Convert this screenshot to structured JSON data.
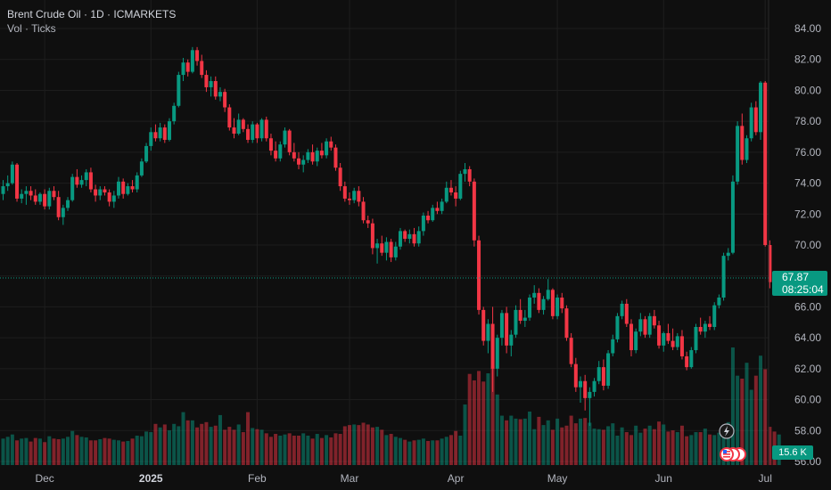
{
  "header": {
    "title": "Brent Crude Oil · 1D · ICMARKETS",
    "subtitle": "Vol · Ticks"
  },
  "price_axis": {
    "ticks": [
      "84.00",
      "82.00",
      "80.00",
      "78.00",
      "76.00",
      "74.00",
      "72.00",
      "70.00",
      "66.00",
      "64.00",
      "62.00",
      "60.00",
      "58.00",
      "56.00"
    ]
  },
  "last_price": {
    "value": "67.87",
    "countdown": "08:25:04"
  },
  "volume_tag": "15.6 K",
  "colors": {
    "up": "#089981",
    "down": "#f23645",
    "background": "#0f0f0f",
    "grid": "#1e1e1e"
  },
  "chart_data": {
    "type": "candlestick",
    "title": "Brent Crude Oil · 1D · ICMARKETS",
    "ylim": [
      56.0,
      85.0
    ],
    "grid": true,
    "x_labels": [
      {
        "label": "Dec",
        "index": 9
      },
      {
        "label": "2025",
        "index": 32,
        "bold": true
      },
      {
        "label": "Feb",
        "index": 55
      },
      {
        "label": "Mar",
        "index": 75
      },
      {
        "label": "Apr",
        "index": 98
      },
      {
        "label": "May",
        "index": 120
      },
      {
        "label": "Jun",
        "index": 143
      },
      {
        "label": "Jul",
        "index": 165
      }
    ],
    "candles": [
      [
        73.3,
        74.2,
        72.9,
        73.8
      ],
      [
        73.8,
        74.5,
        73.5,
        74.0
      ],
      [
        74.0,
        75.4,
        73.9,
        75.2
      ],
      [
        75.2,
        75.3,
        72.8,
        73.0
      ],
      [
        73.0,
        73.6,
        72.7,
        73.3
      ],
      [
        73.3,
        73.8,
        72.6,
        73.5
      ],
      [
        73.5,
        73.8,
        72.9,
        73.2
      ],
      [
        73.2,
        73.6,
        72.6,
        72.8
      ],
      [
        72.8,
        73.4,
        72.6,
        73.3
      ],
      [
        73.3,
        73.6,
        72.3,
        72.5
      ],
      [
        72.5,
        73.7,
        72.3,
        73.5
      ],
      [
        73.5,
        73.8,
        72.9,
        73.1
      ],
      [
        73.1,
        73.5,
        71.6,
        71.8
      ],
      [
        71.8,
        72.6,
        71.3,
        72.4
      ],
      [
        72.4,
        73.1,
        72.2,
        72.9
      ],
      [
        72.9,
        74.6,
        72.8,
        74.4
      ],
      [
        74.4,
        74.9,
        73.7,
        73.9
      ],
      [
        73.9,
        74.5,
        73.7,
        74.2
      ],
      [
        74.2,
        74.9,
        73.8,
        74.7
      ],
      [
        74.7,
        75.0,
        73.4,
        73.6
      ],
      [
        73.6,
        73.9,
        72.8,
        73.2
      ],
      [
        73.2,
        73.8,
        72.9,
        73.6
      ],
      [
        73.6,
        73.8,
        73.2,
        73.4
      ],
      [
        73.4,
        73.6,
        72.5,
        72.8
      ],
      [
        72.8,
        73.5,
        72.4,
        73.2
      ],
      [
        73.2,
        74.4,
        73.0,
        74.1
      ],
      [
        74.1,
        74.3,
        73.0,
        73.3
      ],
      [
        73.3,
        74.0,
        73.2,
        73.8
      ],
      [
        73.8,
        74.2,
        73.4,
        73.6
      ],
      [
        73.6,
        74.7,
        73.4,
        74.5
      ],
      [
        74.5,
        75.6,
        74.4,
        75.4
      ],
      [
        75.4,
        76.6,
        75.3,
        76.4
      ],
      [
        76.4,
        77.6,
        76.1,
        77.3
      ],
      [
        77.3,
        77.8,
        76.7,
        76.9
      ],
      [
        76.9,
        77.9,
        76.7,
        77.6
      ],
      [
        77.6,
        77.8,
        76.6,
        76.8
      ],
      [
        76.8,
        78.2,
        76.7,
        78.0
      ],
      [
        78.0,
        79.2,
        77.8,
        79.0
      ],
      [
        79.0,
        81.2,
        78.9,
        81.0
      ],
      [
        81.0,
        82.1,
        80.6,
        81.8
      ],
      [
        81.8,
        82.0,
        80.9,
        81.2
      ],
      [
        81.2,
        82.8,
        81.1,
        82.6
      ],
      [
        82.6,
        82.8,
        81.6,
        81.9
      ],
      [
        81.9,
        82.3,
        80.8,
        81.0
      ],
      [
        81.0,
        81.3,
        79.9,
        80.2
      ],
      [
        80.2,
        80.9,
        79.6,
        80.6
      ],
      [
        80.6,
        80.9,
        79.4,
        79.6
      ],
      [
        79.6,
        80.2,
        79.3,
        79.9
      ],
      [
        79.9,
        80.1,
        78.6,
        78.9
      ],
      [
        78.9,
        79.1,
        77.4,
        77.6
      ],
      [
        77.6,
        78.2,
        76.9,
        77.2
      ],
      [
        77.2,
        78.5,
        77.1,
        78.1
      ],
      [
        78.1,
        78.2,
        77.3,
        77.5
      ],
      [
        77.5,
        77.8,
        76.6,
        76.8
      ],
      [
        76.8,
        78.0,
        76.6,
        77.8
      ],
      [
        77.8,
        77.9,
        76.6,
        76.9
      ],
      [
        76.9,
        78.2,
        76.7,
        78.1
      ],
      [
        78.1,
        78.3,
        76.7,
        76.9
      ],
      [
        76.9,
        77.2,
        75.8,
        76.1
      ],
      [
        76.1,
        76.7,
        75.4,
        75.6
      ],
      [
        75.6,
        76.7,
        75.4,
        76.5
      ],
      [
        76.5,
        77.6,
        76.3,
        77.4
      ],
      [
        77.4,
        77.5,
        75.8,
        76.0
      ],
      [
        76.0,
        76.6,
        75.4,
        75.6
      ],
      [
        75.6,
        76.0,
        74.9,
        75.2
      ],
      [
        75.2,
        75.8,
        74.7,
        75.5
      ],
      [
        75.5,
        76.2,
        75.3,
        76.0
      ],
      [
        76.0,
        76.5,
        75.2,
        75.4
      ],
      [
        75.4,
        76.3,
        75.1,
        76.1
      ],
      [
        76.1,
        76.6,
        75.6,
        75.8
      ],
      [
        75.8,
        76.9,
        75.6,
        76.7
      ],
      [
        76.7,
        77.0,
        76.1,
        76.3
      ],
      [
        76.3,
        76.5,
        74.8,
        75.0
      ],
      [
        75.0,
        75.3,
        73.5,
        73.8
      ],
      [
        73.8,
        74.1,
        72.8,
        73.0
      ],
      [
        73.0,
        73.4,
        72.6,
        72.9
      ],
      [
        72.9,
        73.7,
        72.7,
        73.5
      ],
      [
        73.5,
        73.8,
        72.5,
        72.8
      ],
      [
        72.8,
        73.1,
        71.4,
        71.6
      ],
      [
        71.6,
        71.9,
        71.1,
        71.4
      ],
      [
        71.4,
        71.7,
        69.4,
        69.8
      ],
      [
        69.8,
        70.4,
        68.8,
        70.1
      ],
      [
        70.1,
        70.6,
        69.3,
        69.5
      ],
      [
        69.5,
        70.5,
        69.0,
        70.2
      ],
      [
        70.2,
        70.4,
        68.9,
        69.2
      ],
      [
        69.2,
        70.2,
        69.0,
        69.9
      ],
      [
        69.9,
        71.1,
        69.7,
        70.9
      ],
      [
        70.9,
        71.0,
        70.2,
        70.4
      ],
      [
        70.4,
        71.0,
        70.1,
        70.7
      ],
      [
        70.7,
        71.1,
        69.9,
        70.1
      ],
      [
        70.1,
        71.2,
        69.9,
        70.9
      ],
      [
        70.9,
        72.1,
        70.6,
        71.9
      ],
      [
        71.9,
        72.2,
        71.4,
        71.6
      ],
      [
        71.6,
        72.6,
        71.5,
        72.4
      ],
      [
        72.4,
        72.8,
        72.0,
        72.2
      ],
      [
        72.2,
        73.0,
        72.0,
        72.8
      ],
      [
        72.8,
        74.1,
        72.7,
        73.7
      ],
      [
        73.7,
        74.2,
        73.2,
        73.4
      ],
      [
        73.4,
        73.8,
        72.5,
        73.0
      ],
      [
        73.0,
        74.8,
        72.9,
        74.6
      ],
      [
        74.6,
        75.3,
        74.1,
        74.9
      ],
      [
        74.9,
        75.1,
        73.8,
        74.1
      ],
      [
        74.1,
        74.3,
        69.9,
        70.3
      ],
      [
        70.3,
        70.6,
        65.5,
        65.8
      ],
      [
        65.8,
        66.0,
        63.5,
        63.8
      ],
      [
        63.8,
        65.2,
        63.0,
        64.9
      ],
      [
        64.9,
        66.0,
        60.5,
        62.0
      ],
      [
        62.0,
        64.2,
        61.5,
        64.0
      ],
      [
        64.0,
        65.8,
        63.5,
        65.6
      ],
      [
        65.6,
        66.0,
        63.0,
        63.5
      ],
      [
        63.5,
        64.5,
        62.8,
        64.2
      ],
      [
        64.2,
        66.1,
        64.0,
        65.8
      ],
      [
        65.8,
        66.5,
        64.9,
        65.1
      ],
      [
        65.1,
        65.8,
        64.7,
        65.3
      ],
      [
        65.3,
        66.8,
        65.1,
        66.6
      ],
      [
        66.6,
        67.4,
        66.2,
        66.9
      ],
      [
        66.9,
        67.2,
        65.6,
        65.8
      ],
      [
        65.8,
        66.7,
        65.5,
        66.5
      ],
      [
        66.5,
        67.8,
        66.4,
        67.1
      ],
      [
        67.1,
        67.2,
        65.2,
        65.4
      ],
      [
        65.4,
        66.8,
        65.2,
        66.6
      ],
      [
        66.6,
        66.9,
        65.6,
        65.9
      ],
      [
        65.9,
        66.1,
        63.8,
        64.0
      ],
      [
        64.0,
        64.3,
        62.1,
        62.3
      ],
      [
        62.3,
        62.7,
        60.5,
        60.8
      ],
      [
        60.8,
        61.5,
        59.8,
        61.2
      ],
      [
        61.2,
        61.6,
        59.3,
        60.1
      ],
      [
        60.1,
        60.8,
        58.3,
        60.5
      ],
      [
        60.5,
        61.4,
        60.2,
        61.2
      ],
      [
        61.2,
        62.5,
        61.0,
        62.1
      ],
      [
        62.1,
        62.6,
        60.6,
        60.9
      ],
      [
        60.9,
        63.2,
        60.7,
        63.0
      ],
      [
        63.0,
        64.2,
        62.8,
        63.9
      ],
      [
        63.9,
        65.6,
        63.7,
        65.4
      ],
      [
        65.4,
        66.4,
        65.2,
        66.2
      ],
      [
        66.2,
        66.5,
        64.7,
        64.9
      ],
      [
        64.9,
        65.2,
        62.8,
        63.2
      ],
      [
        63.2,
        64.6,
        63.0,
        64.4
      ],
      [
        64.4,
        65.6,
        64.1,
        65.2
      ],
      [
        65.2,
        65.4,
        64.0,
        64.2
      ],
      [
        64.2,
        65.6,
        64.0,
        65.4
      ],
      [
        65.4,
        65.8,
        64.6,
        64.8
      ],
      [
        64.8,
        65.1,
        63.3,
        63.5
      ],
      [
        63.5,
        64.4,
        63.1,
        64.3
      ],
      [
        64.3,
        64.9,
        63.6,
        63.8
      ],
      [
        63.8,
        64.6,
        63.2,
        63.4
      ],
      [
        63.4,
        64.3,
        63.2,
        64.1
      ],
      [
        64.1,
        64.5,
        62.6,
        62.8
      ],
      [
        62.8,
        63.1,
        61.9,
        62.1
      ],
      [
        62.1,
        63.4,
        62.0,
        63.2
      ],
      [
        63.2,
        64.9,
        63.0,
        64.7
      ],
      [
        64.7,
        65.3,
        64.2,
        64.4
      ],
      [
        64.4,
        65.1,
        64.0,
        64.9
      ],
      [
        64.9,
        65.4,
        64.5,
        64.7
      ],
      [
        64.7,
        66.3,
        64.5,
        66.1
      ],
      [
        66.1,
        66.8,
        65.9,
        66.6
      ],
      [
        66.6,
        69.5,
        66.4,
        69.3
      ],
      [
        69.3,
        69.8,
        69.0,
        69.5
      ],
      [
        69.5,
        74.5,
        69.4,
        74.1
      ],
      [
        74.1,
        78.0,
        73.9,
        77.7
      ],
      [
        77.7,
        78.5,
        75.2,
        75.5
      ],
      [
        75.5,
        77.1,
        75.3,
        76.9
      ],
      [
        76.9,
        79.2,
        76.7,
        78.9
      ],
      [
        78.9,
        79.3,
        77.1,
        77.3
      ],
      [
        77.3,
        80.6,
        76.8,
        80.5
      ],
      [
        80.5,
        80.6,
        69.9,
        70.0
      ],
      [
        70.0,
        70.3,
        67.2,
        67.6
      ],
      [
        67.6,
        67.8,
        66.8,
        67.5
      ],
      [
        67.5,
        68.1,
        67.4,
        67.87
      ]
    ],
    "volumes": [
      9.0,
      9.6,
      10.4,
      8.4,
      9.0,
      9.2,
      8.0,
      9.2,
      9.0,
      7.8,
      9.8,
      9.0,
      8.8,
      9.0,
      9.6,
      11.6,
      10.2,
      9.6,
      9.4,
      8.4,
      8.4,
      8.8,
      9.2,
      9.0,
      8.6,
      8.4,
      8.0,
      8.2,
      9.0,
      10.0,
      9.8,
      11.4,
      11.2,
      14.0,
      12.8,
      13.8,
      11.8,
      14.0,
      13.2,
      18.0,
      15.2,
      15.2,
      12.8,
      14.0,
      14.6,
      13.0,
      13.4,
      17.0,
      12.0,
      13.0,
      12.0,
      13.8,
      11.2,
      18.0,
      12.6,
      12.2,
      12.0,
      10.8,
      9.6,
      10.6,
      10.0,
      10.4,
      10.8,
      10.0,
      10.0,
      10.8,
      10.0,
      9.0,
      10.6,
      9.2,
      10.2,
      9.4,
      10.8,
      10.6,
      13.2,
      13.6,
      13.8,
      13.6,
      14.4,
      13.8,
      12.8,
      13.0,
      12.0,
      10.2,
      10.6,
      9.6,
      9.2,
      8.6,
      8.0,
      8.4,
      8.6,
      9.0,
      8.2,
      8.4,
      8.4,
      9.0,
      9.6,
      10.2,
      11.6,
      10.0,
      20.6,
      31.0,
      28.8,
      32.0,
      28.4,
      31.2,
      33.6,
      24.0,
      16.8,
      15.2,
      16.8,
      15.8,
      15.6,
      15.8,
      18.2,
      12.2,
      16.4,
      13.6,
      15.2,
      12.0,
      15.8,
      12.8,
      13.4,
      16.8,
      14.2,
      15.8,
      16.0,
      14.4,
      12.4,
      12.2,
      12.0,
      13.2,
      14.2,
      10.0,
      12.8,
      11.2,
      10.2,
      13.4,
      11.0,
      12.4,
      13.4,
      12.2,
      14.8,
      13.8,
      11.4,
      11.8,
      11.2,
      13.4,
      9.8,
      10.2,
      11.2,
      11.2,
      12.4,
      10.4,
      10.2,
      11.0,
      12.8,
      14.6,
      40.0,
      30.4,
      29.4,
      34.8,
      25.6,
      30.4,
      37.2,
      32.6,
      13.0,
      11.4,
      10.4
    ]
  }
}
